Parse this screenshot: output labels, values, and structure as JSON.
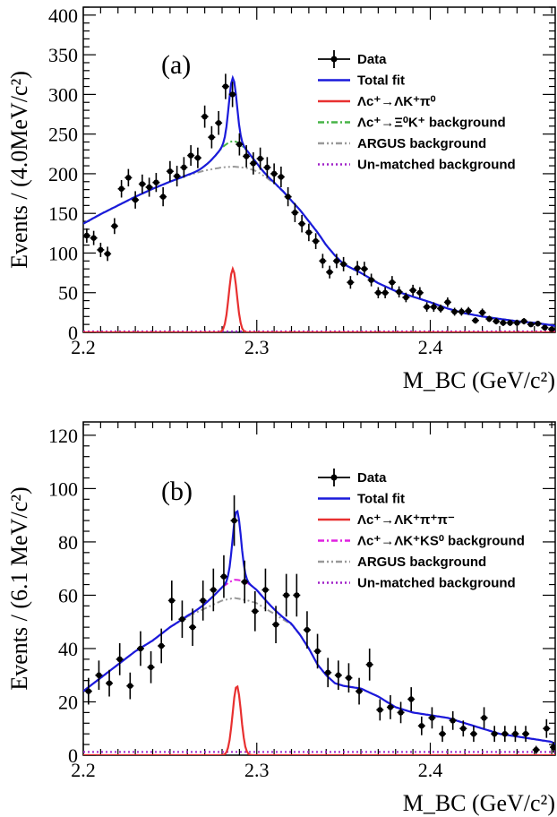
{
  "chart_data": [
    {
      "type": "scatter",
      "panel_label": "(a)",
      "xlabel": "M_BC (GeV/c²)",
      "ylabel": "Events / (4.0MeV/c²)",
      "xlim": [
        2.2,
        2.472
      ],
      "ylim": [
        0,
        410
      ],
      "x_ticks": [
        2.2,
        2.3,
        2.4
      ],
      "x_tick_labels": [
        "2.2",
        "2.3",
        "2.4"
      ],
      "y_ticks": [
        0,
        50,
        100,
        150,
        200,
        250,
        300,
        350,
        400
      ],
      "y_tick_labels": [
        "0",
        "50",
        "100",
        "150",
        "200",
        "250",
        "300",
        "350",
        "400"
      ],
      "grid": false,
      "legend_position": "top-right",
      "legend": [
        {
          "label": "Data",
          "color": "#000000",
          "style": "data"
        },
        {
          "label": "Total fit",
          "color": "#1a1adb",
          "style": "solid"
        },
        {
          "label": "Λc⁺→ΛK⁺π⁰",
          "color": "#e83030",
          "style": "solid"
        },
        {
          "label": "Λc⁺→Ξ⁰K⁺ background",
          "color": "#46b446",
          "style": "dashdot"
        },
        {
          "label": "ARGUS background",
          "color": "#999999",
          "style": "dashdotdot"
        },
        {
          "label": "Un-matched background",
          "color": "#a020c8",
          "style": "dotted"
        }
      ],
      "data_points": [
        [
          2.202,
          122,
          9
        ],
        [
          2.206,
          119,
          9
        ],
        [
          2.21,
          104,
          9
        ],
        [
          2.214,
          99,
          9
        ],
        [
          2.218,
          134,
          10
        ],
        [
          2.222,
          181,
          11
        ],
        [
          2.226,
          195,
          11
        ],
        [
          2.23,
          167,
          11
        ],
        [
          2.234,
          187,
          12
        ],
        [
          2.238,
          183,
          12
        ],
        [
          2.242,
          189,
          12
        ],
        [
          2.246,
          171,
          12
        ],
        [
          2.25,
          203,
          13
        ],
        [
          2.254,
          197,
          13
        ],
        [
          2.258,
          208,
          13
        ],
        [
          2.262,
          223,
          13
        ],
        [
          2.266,
          220,
          13
        ],
        [
          2.27,
          272,
          14
        ],
        [
          2.274,
          246,
          14
        ],
        [
          2.278,
          264,
          15
        ],
        [
          2.282,
          310,
          16
        ],
        [
          2.286,
          300,
          16
        ],
        [
          2.29,
          237,
          14
        ],
        [
          2.294,
          222,
          14
        ],
        [
          2.298,
          213,
          14
        ],
        [
          2.302,
          219,
          14
        ],
        [
          2.306,
          208,
          13
        ],
        [
          2.31,
          200,
          13
        ],
        [
          2.314,
          196,
          13
        ],
        [
          2.318,
          171,
          12
        ],
        [
          2.322,
          151,
          12
        ],
        [
          2.326,
          137,
          11
        ],
        [
          2.33,
          126,
          11
        ],
        [
          2.334,
          115,
          10
        ],
        [
          2.338,
          90,
          9
        ],
        [
          2.342,
          76,
          8
        ],
        [
          2.346,
          90,
          9
        ],
        [
          2.35,
          86,
          9
        ],
        [
          2.354,
          63,
          8
        ],
        [
          2.358,
          81,
          9
        ],
        [
          2.362,
          80,
          9
        ],
        [
          2.366,
          66,
          8
        ],
        [
          2.37,
          50,
          7
        ],
        [
          2.374,
          50,
          7
        ],
        [
          2.378,
          63,
          8
        ],
        [
          2.382,
          51,
          7
        ],
        [
          2.386,
          44,
          6
        ],
        [
          2.39,
          53,
          7
        ],
        [
          2.394,
          50,
          7
        ],
        [
          2.398,
          32,
          6
        ],
        [
          2.402,
          32,
          6
        ],
        [
          2.406,
          30,
          5
        ],
        [
          2.41,
          38,
          6
        ],
        [
          2.414,
          26,
          5
        ],
        [
          2.418,
          26,
          5
        ],
        [
          2.422,
          27,
          5
        ],
        [
          2.426,
          15,
          4
        ],
        [
          2.43,
          25,
          5
        ],
        [
          2.434,
          17,
          4
        ],
        [
          2.438,
          14,
          4
        ],
        [
          2.442,
          12,
          4
        ],
        [
          2.446,
          12,
          4
        ],
        [
          2.45,
          12,
          4
        ],
        [
          2.454,
          14,
          4
        ],
        [
          2.458,
          10,
          3
        ],
        [
          2.462,
          11,
          3
        ],
        [
          2.466,
          6,
          3
        ],
        [
          2.47,
          4,
          2
        ]
      ],
      "bg_sample_x": [
        2.2,
        2.21,
        2.22,
        2.23,
        2.24,
        2.25,
        2.26,
        2.27,
        2.28,
        2.287,
        2.295,
        2.3,
        2.305,
        2.31,
        2.315,
        2.32,
        2.325,
        2.33,
        2.335,
        2.34,
        2.345,
        2.35,
        2.36,
        2.37,
        2.38,
        2.39,
        2.4,
        2.41,
        2.42,
        2.43,
        2.44,
        2.45,
        2.46,
        2.47,
        2.472
      ],
      "bg_sample_y": [
        137,
        149,
        160,
        171,
        181,
        190,
        198,
        204,
        208,
        209,
        207,
        203,
        196,
        188,
        178,
        166,
        154,
        140,
        126,
        110,
        97,
        86,
        75,
        62,
        52,
        45,
        38,
        30,
        24,
        20,
        17,
        14,
        12,
        9,
        8
      ],
      "signal": {
        "mean": 2.2862,
        "sigma": 0.0023,
        "peak": 80
      },
      "side_peak": {
        "mean": 2.2865,
        "sigma": 0.009,
        "peak": 32
      }
    },
    {
      "type": "scatter",
      "panel_label": "(b)",
      "xlabel": "M_BC (GeV/c²)",
      "ylabel": "Events / (6.1 MeV/c²)",
      "xlim": [
        2.2,
        2.472
      ],
      "ylim": [
        0,
        125
      ],
      "x_ticks": [
        2.2,
        2.3,
        2.4
      ],
      "x_tick_labels": [
        "2.2",
        "2.3",
        "2.4"
      ],
      "y_ticks": [
        0,
        20,
        40,
        60,
        80,
        100,
        120
      ],
      "y_tick_labels": [
        "0",
        "20",
        "40",
        "60",
        "80",
        "100",
        "120"
      ],
      "grid": false,
      "legend_position": "top-right",
      "legend": [
        {
          "label": "Data",
          "color": "#000000",
          "style": "data"
        },
        {
          "label": "Total fit",
          "color": "#1a1adb",
          "style": "solid"
        },
        {
          "label": "Λc⁺→ΛK⁺π⁺π⁻",
          "color": "#e83030",
          "style": "solid"
        },
        {
          "label": "Λc⁺→ΛK⁺KS⁰ background",
          "color": "#e020e0",
          "style": "dashdot"
        },
        {
          "label": "ARGUS background",
          "color": "#999999",
          "style": "dashdotdot"
        },
        {
          "label": "Un-matched background",
          "color": "#a020c8",
          "style": "dotted"
        }
      ],
      "data_points": [
        [
          2.203,
          24,
          5
        ],
        [
          2.209,
          30,
          5.5
        ],
        [
          2.215,
          27,
          5
        ],
        [
          2.221,
          36,
          6
        ],
        [
          2.227,
          26,
          5
        ],
        [
          2.233,
          40,
          6.5
        ],
        [
          2.239,
          33,
          6
        ],
        [
          2.245,
          41,
          6.5
        ],
        [
          2.251,
          58,
          7.5
        ],
        [
          2.257,
          51,
          7
        ],
        [
          2.263,
          48,
          7
        ],
        [
          2.269,
          58,
          7.5
        ],
        [
          2.275,
          62,
          8
        ],
        [
          2.281,
          67,
          8
        ],
        [
          2.287,
          88,
          9.5
        ],
        [
          2.293,
          65,
          8
        ],
        [
          2.299,
          54,
          7.5
        ],
        [
          2.305,
          62,
          8
        ],
        [
          2.311,
          49,
          7
        ],
        [
          2.317,
          60,
          8
        ],
        [
          2.323,
          60,
          8
        ],
        [
          2.329,
          47,
          7
        ],
        [
          2.335,
          39,
          6.5
        ],
        [
          2.341,
          31,
          5.5
        ],
        [
          2.347,
          30,
          5.5
        ],
        [
          2.353,
          29,
          5.5
        ],
        [
          2.359,
          24,
          5
        ],
        [
          2.365,
          34,
          6
        ],
        [
          2.371,
          17,
          4
        ],
        [
          2.377,
          18,
          4.5
        ],
        [
          2.383,
          16,
          4
        ],
        [
          2.389,
          21,
          4.5
        ],
        [
          2.395,
          11,
          3.5
        ],
        [
          2.401,
          14,
          4
        ],
        [
          2.407,
          8,
          3
        ],
        [
          2.413,
          13,
          3.5
        ],
        [
          2.419,
          10,
          3
        ],
        [
          2.425,
          8,
          3
        ],
        [
          2.431,
          14,
          4
        ],
        [
          2.437,
          8,
          3
        ],
        [
          2.443,
          8,
          3
        ],
        [
          2.449,
          8,
          3
        ],
        [
          2.455,
          8,
          3
        ],
        [
          2.461,
          2,
          1.5
        ],
        [
          2.467,
          10,
          3.5
        ],
        [
          2.471,
          3,
          2
        ]
      ],
      "bg_sample_x": [
        2.2,
        2.21,
        2.22,
        2.23,
        2.24,
        2.25,
        2.26,
        2.27,
        2.28,
        2.287,
        2.295,
        2.3,
        2.305,
        2.31,
        2.315,
        2.32,
        2.325,
        2.33,
        2.335,
        2.34,
        2.345,
        2.35,
        2.36,
        2.37,
        2.38,
        2.39,
        2.4,
        2.41,
        2.42,
        2.43,
        2.44,
        2.45,
        2.46,
        2.47,
        2.472
      ],
      "bg_sample_y": [
        24,
        29,
        34,
        39,
        43,
        48,
        52,
        55,
        58,
        59,
        58,
        57,
        55,
        53,
        51,
        49,
        45,
        40,
        34,
        30,
        27,
        26,
        25,
        22,
        18,
        16,
        15,
        14,
        12,
        10,
        8,
        7,
        6,
        5,
        4
      ],
      "signal": {
        "mean": 2.2885,
        "sigma": 0.0024,
        "peak": 26
      },
      "side_peak": {
        "mean": 2.29,
        "sigma": 0.012,
        "peak": 7
      }
    }
  ]
}
